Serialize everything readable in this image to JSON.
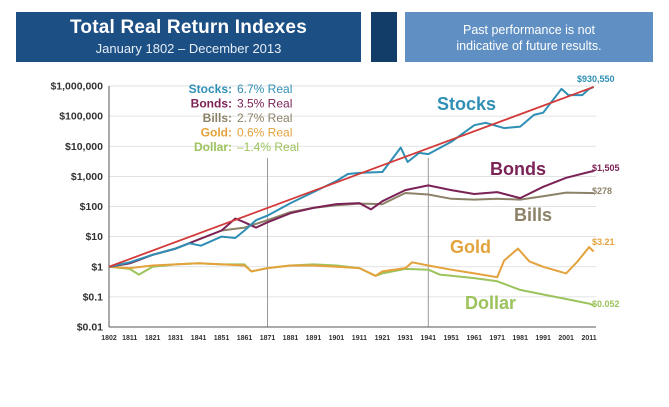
{
  "header": {
    "title": "Total Real Return Indexes",
    "subtitle": "January 1802 – December 2013",
    "disclaimer_line1": "Past performance is not",
    "disclaimer_line2": "indicative of future results."
  },
  "legend": [
    {
      "name": "Stocks",
      "rate": "6.7% Real",
      "color": "#2f8fb5"
    },
    {
      "name": "Bonds",
      "rate": "3.5% Real",
      "color": "#7b2256"
    },
    {
      "name": "Bills",
      "rate": "2.7% Real",
      "color": "#8c8268"
    },
    {
      "name": "Gold",
      "rate": "0.6% Real",
      "color": "#e3a23c"
    },
    {
      "name": "Dollar",
      "rate": "–1.4% Real",
      "color": "#9cc35c"
    }
  ],
  "colors": {
    "header_dark": "#1c4f84",
    "header_accent": "#123d68",
    "header_light": "#5f8fc3",
    "trendline": "#d33a3a",
    "grid": "#d9d9d9",
    "axis": "#555555"
  },
  "chart_data": {
    "type": "line",
    "title": "Total Real Return Indexes",
    "subtitle": "January 1802 – December 2013",
    "xlabel": "",
    "ylabel": "",
    "yscale": "log",
    "xlim": [
      1802,
      2014
    ],
    "ylim": [
      0.01,
      1000000
    ],
    "y_ticks": [
      1000000,
      100000,
      10000,
      1000,
      100,
      10,
      1,
      0.1,
      0.01
    ],
    "y_tick_labels": [
      "$1,000,000",
      "$100,000",
      "$10,000",
      "$1,000",
      "$100",
      "$10",
      "$1",
      "$0.1",
      "$0.01"
    ],
    "x_ticks": [
      1802,
      1811,
      1821,
      1831,
      1841,
      1851,
      1861,
      1871,
      1881,
      1891,
      1901,
      1911,
      1921,
      1931,
      1941,
      1951,
      1961,
      1971,
      1981,
      1991,
      2001,
      2011
    ],
    "x_tick_labels": [
      "1802",
      "1811",
      "1821",
      "1831",
      "1841",
      "1851",
      "1861",
      "1871",
      "1881",
      "1891",
      "1901",
      "1911",
      "1921",
      "1931",
      "1941",
      "1951",
      "1961",
      "1971",
      "1981",
      "1991",
      "2001",
      "2011"
    ],
    "vertical_markers": [
      1871,
      1941
    ],
    "series": [
      {
        "name": "Stocks",
        "big_label": "Stocks",
        "end_label": "$930,550",
        "color": "#2f8fb5",
        "x": [
          1802,
          1811,
          1821,
          1831,
          1837,
          1842,
          1851,
          1857,
          1861,
          1866,
          1871,
          1881,
          1891,
          1901,
          1906,
          1911,
          1921,
          1929,
          1932,
          1937,
          1941,
          1951,
          1961,
          1966,
          1974,
          1981,
          1987,
          1991,
          1999,
          2002,
          2008,
          2011,
          2013
        ],
        "y": [
          1,
          1.4,
          2.5,
          4,
          6,
          5,
          10,
          9,
          16,
          35,
          50,
          130,
          300,
          700,
          1200,
          1300,
          1400,
          9000,
          3000,
          6000,
          5500,
          14000,
          50000,
          60000,
          40000,
          45000,
          110000,
          130000,
          800000,
          500000,
          500000,
          800000,
          930550
        ]
      },
      {
        "name": "Bonds",
        "big_label": "Bonds",
        "end_label": "$1,505",
        "color": "#7b2256",
        "x": [
          1802,
          1811,
          1821,
          1831,
          1841,
          1851,
          1857,
          1861,
          1866,
          1871,
          1881,
          1891,
          1901,
          1911,
          1916,
          1921,
          1931,
          1941,
          1951,
          1961,
          1971,
          1981,
          1991,
          2001,
          2011,
          2013
        ],
        "y": [
          1,
          1.3,
          2.5,
          4,
          8,
          16,
          40,
          30,
          20,
          30,
          60,
          90,
          120,
          130,
          80,
          150,
          350,
          500,
          350,
          260,
          300,
          190,
          450,
          900,
          1400,
          1505
        ]
      },
      {
        "name": "Bills",
        "big_label": "Bills",
        "end_label": "$278",
        "color": "#8c8268",
        "x": [
          1802,
          1811,
          1821,
          1831,
          1841,
          1851,
          1861,
          1871,
          1881,
          1891,
          1901,
          1911,
          1921,
          1931,
          1941,
          1951,
          1961,
          1971,
          1981,
          1991,
          2001,
          2011,
          2013
        ],
        "y": [
          1,
          1.3,
          2.5,
          4,
          8,
          16,
          20,
          35,
          65,
          90,
          110,
          125,
          120,
          280,
          250,
          180,
          170,
          180,
          170,
          220,
          290,
          280,
          278
        ]
      },
      {
        "name": "Gold",
        "big_label": "Gold",
        "end_label": "$3.21",
        "color": "#e3a23c",
        "x": [
          1802,
          1811,
          1821,
          1831,
          1841,
          1851,
          1861,
          1864,
          1871,
          1881,
          1891,
          1901,
          1911,
          1918,
          1921,
          1931,
          1934,
          1941,
          1951,
          1961,
          1971,
          1974,
          1980,
          1985,
          1991,
          2001,
          2006,
          2011,
          2013
        ],
        "y": [
          1,
          0.9,
          1.1,
          1.2,
          1.3,
          1.2,
          1.1,
          0.7,
          0.9,
          1.1,
          1.1,
          1.0,
          0.9,
          0.5,
          0.7,
          0.9,
          1.4,
          1.1,
          0.8,
          0.6,
          0.45,
          1.6,
          4.0,
          1.5,
          1.0,
          0.6,
          1.5,
          4.5,
          3.21
        ]
      },
      {
        "name": "Dollar",
        "big_label": "Dollar",
        "end_label": "$0.052",
        "color": "#9cc35c",
        "x": [
          1802,
          1811,
          1815,
          1821,
          1831,
          1841,
          1851,
          1861,
          1864,
          1871,
          1881,
          1891,
          1901,
          1911,
          1918,
          1921,
          1931,
          1941,
          1946,
          1951,
          1961,
          1971,
          1981,
          1991,
          2001,
          2011,
          2013
        ],
        "y": [
          1,
          0.85,
          0.55,
          1.0,
          1.2,
          1.3,
          1.2,
          1.2,
          0.7,
          0.9,
          1.1,
          1.2,
          1.1,
          0.9,
          0.5,
          0.6,
          0.85,
          0.8,
          0.55,
          0.5,
          0.42,
          0.33,
          0.17,
          0.12,
          0.085,
          0.06,
          0.052
        ]
      }
    ],
    "trendline": {
      "name": "Stocks trend",
      "x": [
        1802,
        2013
      ],
      "y": [
        1,
        930550
      ],
      "color": "#d33a3a"
    }
  }
}
